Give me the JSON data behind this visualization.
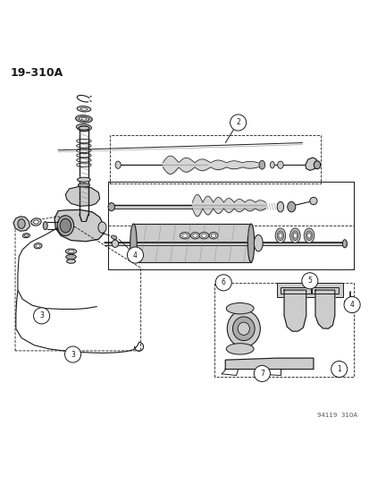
{
  "title": "19–310A",
  "watermark": "94119  310A",
  "bg_color": "#ffffff",
  "lc": "#1a1a1a",
  "gray1": "#888888",
  "gray2": "#aaaaaa",
  "gray3": "#cccccc",
  "fig_width": 4.14,
  "fig_height": 5.33,
  "dpi": 100
}
